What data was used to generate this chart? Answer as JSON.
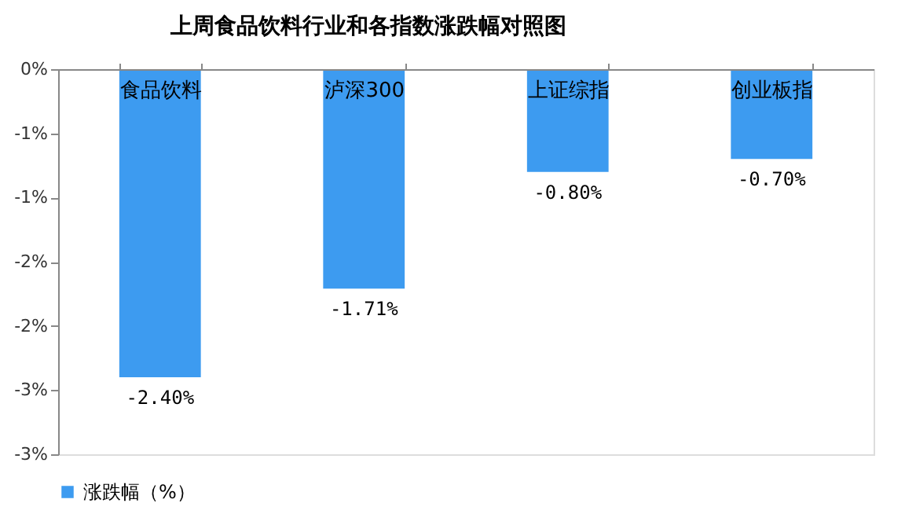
{
  "chart_data": {
    "type": "bar",
    "title": "上周食品饮料行业和各指数涨跌幅对照图",
    "categories": [
      "食品饮料",
      "泸深300",
      "上证综指",
      "创业板指"
    ],
    "series": [
      {
        "name": "涨跌幅（%）",
        "color": "#3d9bf0",
        "values": [
          -2.4,
          -1.71,
          -0.8,
          -0.7
        ]
      }
    ],
    "value_labels": [
      "-2.40%",
      "-1.71%",
      "-0.80%",
      "-0.70%"
    ],
    "ylim": [
      -3,
      0
    ],
    "yticks": [
      {
        "value": 0,
        "label": "0%"
      },
      {
        "value": -0.5,
        "label": "-1%"
      },
      {
        "value": -1,
        "label": "-1%"
      },
      {
        "value": -1.5,
        "label": "-2%"
      },
      {
        "value": -2,
        "label": "-2%"
      },
      {
        "value": -2.5,
        "label": "-3%"
      },
      {
        "value": -3,
        "label": "-3%"
      }
    ],
    "grid": false,
    "legend": "bottom"
  }
}
